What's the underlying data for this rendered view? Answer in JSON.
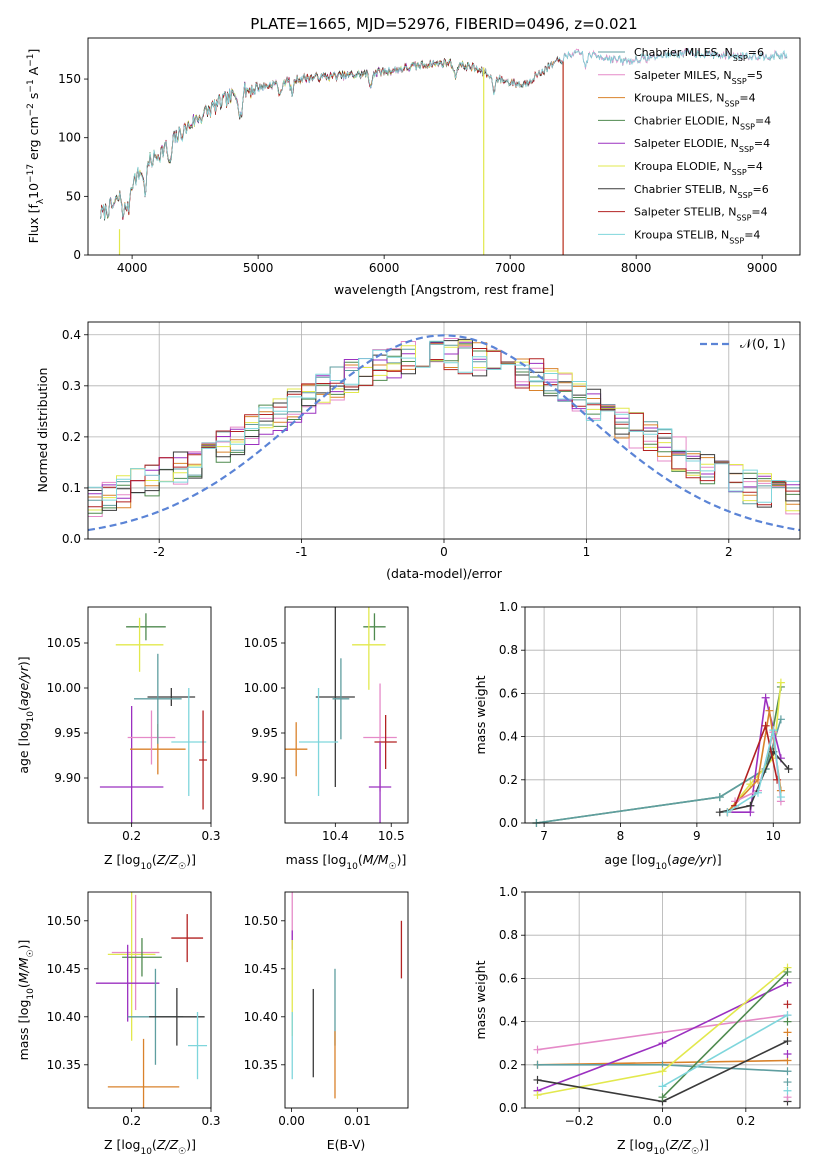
{
  "page_title": "PLATE=1665, MJD=52976, FIBERID=0496, z=0.021",
  "colors": {
    "Chabrier MILES": "#5f9ea0",
    "Salpeter MILES": "#e58ac8",
    "Kroupa MILES": "#d9822b",
    "Chabrier ELODIE": "#4f8a4f",
    "Salpeter ELODIE": "#9b30c0",
    "Kroupa ELODIE": "#e2e84d",
    "Chabrier STELIB": "#3a3a3a",
    "Salpeter STELIB": "#b22222",
    "Kroupa STELIB": "#7fd6dc",
    "normal": "#5b84d6",
    "blue": "#5b84d6",
    "orange": "#e6802e",
    "magenta": "#cc33cc",
    "olive": "#6b8e23"
  },
  "chart_data": [
    {
      "id": "spectrum",
      "type": "line",
      "title": "PLATE=1665, MJD=52976, FIBERID=0496, z=0.021",
      "xlabel": "wavelength [Angstrom, rest frame]",
      "ylabel": "Flux [fλ10⁻¹⁷ erg cm⁻² s⁻¹ A⁻¹]",
      "xlim": [
        3650,
        9300
      ],
      "ylim": [
        0,
        185
      ],
      "xticks": [
        4000,
        5000,
        6000,
        7000,
        8000,
        9000
      ],
      "yticks": [
        0,
        50,
        100,
        150
      ],
      "grid": false,
      "legend_position": "top-right",
      "series": [
        {
          "name": "Chabrier MILES, N_SSP=6",
          "legend": [
            "Chabrier MILES, N",
            "SSP",
            "=6"
          ],
          "end": 9200
        },
        {
          "name": "Salpeter MILES, N_SSP=5",
          "legend": [
            "Salpeter MILES, N",
            "SSP",
            "=5"
          ],
          "end": 9200
        },
        {
          "name": "Kroupa MILES, N_SSP=4",
          "legend": [
            "Kroupa MILES, N",
            "SSP",
            "=4"
          ],
          "end": 7350
        },
        {
          "name": "Chabrier ELODIE, N_SSP=4",
          "legend": [
            "Chabrier ELODIE, N",
            "SSP",
            "=4"
          ],
          "end": 6800
        },
        {
          "name": "Salpeter ELODIE, N_SSP=4",
          "legend": [
            "Salpeter ELODIE, N",
            "SSP",
            "=4"
          ],
          "end": 6800
        },
        {
          "name": "Kroupa ELODIE, N_SSP=4",
          "legend": [
            "Kroupa ELODIE, N",
            "SSP",
            "=4"
          ],
          "end": 6800
        },
        {
          "name": "Chabrier STELIB, N_SSP=6",
          "legend": [
            "Chabrier STELIB, N",
            "SSP",
            "=6"
          ],
          "end": 7420
        },
        {
          "name": "Salpeter STELIB, N_SSP=4",
          "legend": [
            "Salpeter STELIB, N",
            "SSP",
            "=4"
          ],
          "end": 7420
        },
        {
          "name": "Kroupa STELIB, N_SSP=4",
          "legend": [
            "Kroupa STELIB, N",
            "SSP",
            "=4"
          ],
          "end": 9200
        }
      ],
      "spectrum_shape": {
        "x": [
          3750,
          3850,
          3950,
          4100,
          4300,
          4500,
          4700,
          4900,
          5100,
          5300,
          5500,
          5700,
          5900,
          6100,
          6300,
          6500,
          6700,
          6900,
          7100,
          7300,
          7500,
          7700,
          7900,
          8100,
          8300,
          8500,
          8700,
          8900,
          9100,
          9200
        ],
        "y": [
          35,
          42,
          55,
          75,
          95,
          115,
          130,
          140,
          145,
          150,
          152,
          153,
          155,
          158,
          162,
          164,
          160,
          150,
          145,
          160,
          172,
          170,
          165,
          168,
          172,
          172,
          170,
          170,
          170,
          170
        ]
      },
      "drop_lines": [
        {
          "x": 3900,
          "y_from": 22,
          "y_to": 0
        },
        {
          "x": 6790,
          "y_from": 160,
          "y_to": 0
        },
        {
          "x": 7420,
          "y_from": 165,
          "y_to": 0
        }
      ]
    },
    {
      "id": "residuals",
      "type": "histogram",
      "xlabel": "(data-model)/error",
      "ylabel": "Normed distribution",
      "xlim": [
        -2.5,
        2.5
      ],
      "ylim": [
        0,
        0.425
      ],
      "xticks": [
        -2,
        -1,
        0,
        1,
        2
      ],
      "yticks": [
        0.0,
        0.1,
        0.2,
        0.3,
        0.4
      ],
      "grid": true,
      "legend_position": "top-right",
      "legend": "𝒩(0, 1)",
      "bin_width": 0.1,
      "normal_curve": {
        "mean": 0,
        "sigma": 1
      }
    },
    {
      "id": "age_vs_Z",
      "type": "errorbar",
      "xlabel": "Z [log10(Z/Z☉)]",
      "ylabel": "age  [log10(age/yr)]",
      "xlim": [
        0.145,
        0.3
      ],
      "ylim": [
        9.85,
        10.09
      ],
      "xticks": [
        0.2,
        0.3
      ],
      "yticks": [
        9.9,
        9.95,
        10.0,
        10.05
      ],
      "grid": false,
      "points": [
        {
          "model": "Chabrier ELODIE",
          "x": 0.218,
          "y": 10.068,
          "xerr": 0.025,
          "yerr": 0.015
        },
        {
          "model": "Kroupa ELODIE",
          "x": 0.21,
          "y": 10.048,
          "xerr": 0.03,
          "yerr": 0.03
        },
        {
          "model": "Salpeter ELODIE",
          "x": 0.2,
          "y": 9.89,
          "xerr": 0.04,
          "yerr": 0.09
        },
        {
          "model": "Chabrier STELIB",
          "x": 0.25,
          "y": 9.99,
          "xerr": 0.03,
          "yerr": 0.01
        },
        {
          "model": "Kroupa MILES",
          "x": 0.233,
          "y": 9.932,
          "xerr": 0.035,
          "yerr": 0.028
        },
        {
          "model": "Salpeter MILES",
          "x": 0.225,
          "y": 9.945,
          "xerr": 0.03,
          "yerr": 0.03
        },
        {
          "model": "Kroupa STELIB",
          "x": 0.272,
          "y": 9.94,
          "xerr": 0.022,
          "yerr": 0.06
        },
        {
          "model": "Salpeter STELIB",
          "x": 0.29,
          "y": 9.92,
          "xerr": 0.005,
          "yerr": 0.055
        },
        {
          "model": "Chabrier MILES",
          "x": 0.233,
          "y": 9.988,
          "xerr": 0.03,
          "yerr": 0.05
        }
      ]
    },
    {
      "id": "age_vs_mass",
      "type": "errorbar",
      "xlabel": "mass [log10(M/M☉)]",
      "ylabel": "",
      "xlim": [
        10.31,
        10.53
      ],
      "ylim": [
        9.85,
        10.09
      ],
      "xticks": [
        10.4,
        10.5
      ],
      "yticks": [
        9.9,
        9.95,
        10.0,
        10.05
      ],
      "grid": false,
      "points": [
        {
          "model": "Chabrier ELODIE",
          "x": 10.47,
          "y": 10.068,
          "xerr": 0.02,
          "yerr": 0.015
        },
        {
          "model": "Kroupa ELODIE",
          "x": 10.46,
          "y": 10.048,
          "xerr": 0.03,
          "yerr": 0.05
        },
        {
          "model": "Chabrier STELIB",
          "x": 10.4,
          "y": 9.99,
          "xerr": 0.035,
          "yerr": 0.1
        },
        {
          "model": "Kroupa MILES",
          "x": 10.33,
          "y": 9.932,
          "xerr": 0.02,
          "yerr": 0.03
        },
        {
          "model": "Salpeter MILES",
          "x": 10.48,
          "y": 9.945,
          "xerr": 0.03,
          "yerr": 0.06
        },
        {
          "model": "Kroupa STELIB",
          "x": 10.37,
          "y": 9.94,
          "xerr": 0.035,
          "yerr": 0.06
        },
        {
          "model": "Salpeter STELIB",
          "x": 10.49,
          "y": 9.94,
          "xerr": 0.02,
          "yerr": 0.03
        },
        {
          "model": "Salpeter ELODIE",
          "x": 10.48,
          "y": 9.89,
          "xerr": 0.02,
          "yerr": 0.05
        },
        {
          "model": "Chabrier MILES",
          "x": 10.41,
          "y": 9.988,
          "xerr": 0.015,
          "yerr": 0.045
        }
      ]
    },
    {
      "id": "weight_vs_age",
      "type": "line",
      "xlabel": "age  [log10(age/yr)]",
      "ylabel": "mass weight",
      "xlim": [
        6.75,
        10.35
      ],
      "ylim": [
        0,
        1
      ],
      "xticks": [
        7,
        8,
        9,
        10
      ],
      "yticks": [
        0.0,
        0.2,
        0.4,
        0.6,
        0.8,
        1.0
      ],
      "grid": true,
      "series": [
        {
          "model": "Chabrier ELODIE",
          "x": [
            6.9,
            9.3,
            9.9,
            10.1
          ],
          "y": [
            0.0,
            0.12,
            0.25,
            0.63
          ]
        },
        {
          "model": "Chabrier MILES",
          "x": [
            6.9,
            9.3,
            9.9,
            10.1
          ],
          "y": [
            0.0,
            0.12,
            0.25,
            0.48
          ]
        },
        {
          "model": "Kroupa ELODIE",
          "x": [
            9.4,
            9.7,
            10.0,
            10.1
          ],
          "y": [
            0.05,
            0.18,
            0.3,
            0.65
          ]
        },
        {
          "model": "Salpeter ELODIE",
          "x": [
            9.4,
            9.7,
            9.9,
            10.1
          ],
          "y": [
            0.05,
            0.05,
            0.58,
            0.3
          ]
        },
        {
          "model": "Kroupa MILES",
          "x": [
            9.4,
            9.8,
            9.95,
            10.1
          ],
          "y": [
            0.05,
            0.2,
            0.52,
            0.15
          ]
        },
        {
          "model": "Salpeter MILES",
          "x": [
            9.5,
            9.8,
            10.0,
            10.1
          ],
          "y": [
            0.1,
            0.15,
            0.42,
            0.1
          ]
        },
        {
          "model": "Chabrier STELIB",
          "x": [
            9.3,
            9.7,
            10.0,
            10.2
          ],
          "y": [
            0.05,
            0.08,
            0.33,
            0.25
          ]
        },
        {
          "model": "Salpeter STELIB",
          "x": [
            9.5,
            9.9,
            10.05
          ],
          "y": [
            0.08,
            0.45,
            0.2
          ]
        },
        {
          "model": "Kroupa STELIB",
          "x": [
            9.4,
            9.8,
            10.0,
            10.1
          ],
          "y": [
            0.05,
            0.14,
            0.43,
            0.12
          ]
        }
      ]
    },
    {
      "id": "mass_vs_Z",
      "type": "errorbar",
      "xlabel": "Z [log10(Z/Z☉)]",
      "ylabel": "mass [log10(M/M☉)]",
      "xlim": [
        0.145,
        0.3
      ],
      "ylim": [
        10.305,
        10.53
      ],
      "xticks": [
        0.2,
        0.3
      ],
      "yticks": [
        10.35,
        10.4,
        10.45,
        10.5
      ],
      "grid": false,
      "points": [
        {
          "model": "Salpeter MILES",
          "x": 0.205,
          "y": 10.467,
          "xerr": 0.03,
          "yerr": 0.06
        },
        {
          "model": "Kroupa ELODIE",
          "x": 0.2,
          "y": 10.465,
          "xerr": 0.03,
          "yerr": 0.09
        },
        {
          "model": "Chabrier ELODIE",
          "x": 0.213,
          "y": 10.462,
          "xerr": 0.025,
          "yerr": 0.02
        },
        {
          "model": "Salpeter STELIB",
          "x": 0.27,
          "y": 10.482,
          "xerr": 0.02,
          "yerr": 0.025
        },
        {
          "model": "Salpeter ELODIE",
          "x": 0.195,
          "y": 10.435,
          "xerr": 0.04,
          "yerr": 0.04
        },
        {
          "model": "Chabrier MILES",
          "x": 0.23,
          "y": 10.4,
          "xerr": 0.035,
          "yerr": 0.05
        },
        {
          "model": "Chabrier STELIB",
          "x": 0.257,
          "y": 10.4,
          "xerr": 0.035,
          "yerr": 0.03
        },
        {
          "model": "Kroupa STELIB",
          "x": 0.283,
          "y": 10.37,
          "xerr": 0.012,
          "yerr": 0.035
        },
        {
          "model": "Kroupa MILES",
          "x": 0.215,
          "y": 10.327,
          "xerr": 0.045,
          "yerr": 0.05
        }
      ]
    },
    {
      "id": "mass_vs_EBV",
      "type": "errorbar",
      "xlabel": "E(B-V)",
      "ylabel": "",
      "xlim": [
        -0.001,
        0.0177
      ],
      "ylim": [
        10.305,
        10.53
      ],
      "xticks": [
        0.0,
        0.01
      ],
      "yticks": [
        10.35,
        10.4,
        10.45,
        10.5
      ],
      "grid": false,
      "points": [
        {
          "model": "Salpeter MILES",
          "x": 0.0001,
          "y": 10.5,
          "xerr": 0,
          "yerr": 0.03
        },
        {
          "model": "Salpeter ELODIE",
          "x": 0.0001,
          "y": 10.48,
          "xerr": 0,
          "yerr": 0.01
        },
        {
          "model": "Kroupa ELODIE",
          "x": 0.0001,
          "y": 10.43,
          "xerr": 0,
          "yerr": 0.05
        },
        {
          "model": "Kroupa STELIB",
          "x": 0.0001,
          "y": 10.37,
          "xerr": 0,
          "yerr": 0.035
        },
        {
          "model": "Chabrier STELIB",
          "x": 0.0033,
          "y": 10.383,
          "xerr": 0,
          "yerr": 0.046
        },
        {
          "model": "Chabrier MILES",
          "x": 0.0066,
          "y": 10.41,
          "xerr": 0,
          "yerr": 0.04
        },
        {
          "model": "Kroupa MILES",
          "x": 0.0066,
          "y": 10.35,
          "xerr": 0,
          "yerr": 0.035
        },
        {
          "model": "Salpeter STELIB",
          "x": 0.0167,
          "y": 10.47,
          "xerr": 0,
          "yerr": 0.03
        }
      ]
    },
    {
      "id": "weight_vs_Z",
      "type": "line",
      "xlabel": "Z [log10(Z/Z☉)]",
      "ylabel": "mass weight",
      "xlim": [
        -0.33,
        0.33
      ],
      "ylim": [
        0,
        1
      ],
      "xticks": [
        -0.2,
        0.0,
        0.2
      ],
      "yticks": [
        0.0,
        0.2,
        0.4,
        0.6,
        0.8,
        1.0
      ],
      "grid": true,
      "series": [
        {
          "model": "Salpeter MILES",
          "x": [
            -0.3,
            0.3
          ],
          "y": [
            0.27,
            0.43
          ]
        },
        {
          "model": "Kroupa MILES",
          "x": [
            -0.3,
            0.3
          ],
          "y": [
            0.2,
            0.22
          ]
        },
        {
          "model": "Chabrier MILES",
          "x": [
            -0.3,
            0.0,
            0.3
          ],
          "y": [
            0.2,
            0.2,
            0.17
          ]
        },
        {
          "model": "Salpeter ELODIE",
          "x": [
            -0.3,
            0.0,
            0.3
          ],
          "y": [
            0.08,
            0.3,
            0.58
          ]
        },
        {
          "model": "Kroupa ELODIE",
          "x": [
            -0.3,
            0.0,
            0.3
          ],
          "y": [
            0.06,
            0.17,
            0.65
          ]
        },
        {
          "model": "Chabrier STELIB",
          "x": [
            -0.3,
            0.0,
            0.3
          ],
          "y": [
            0.13,
            0.03,
            0.31
          ]
        },
        {
          "model": "Chabrier ELODIE",
          "x": [
            0.0,
            0.3
          ],
          "y": [
            0.05,
            0.63
          ]
        },
        {
          "model": "Kroupa STELIB",
          "x": [
            0.0,
            0.3
          ],
          "y": [
            0.1,
            0.43
          ]
        }
      ],
      "right_edge_markers": [
        0.03,
        0.05,
        0.08,
        0.12,
        0.25,
        0.35,
        0.4,
        0.48
      ]
    }
  ]
}
